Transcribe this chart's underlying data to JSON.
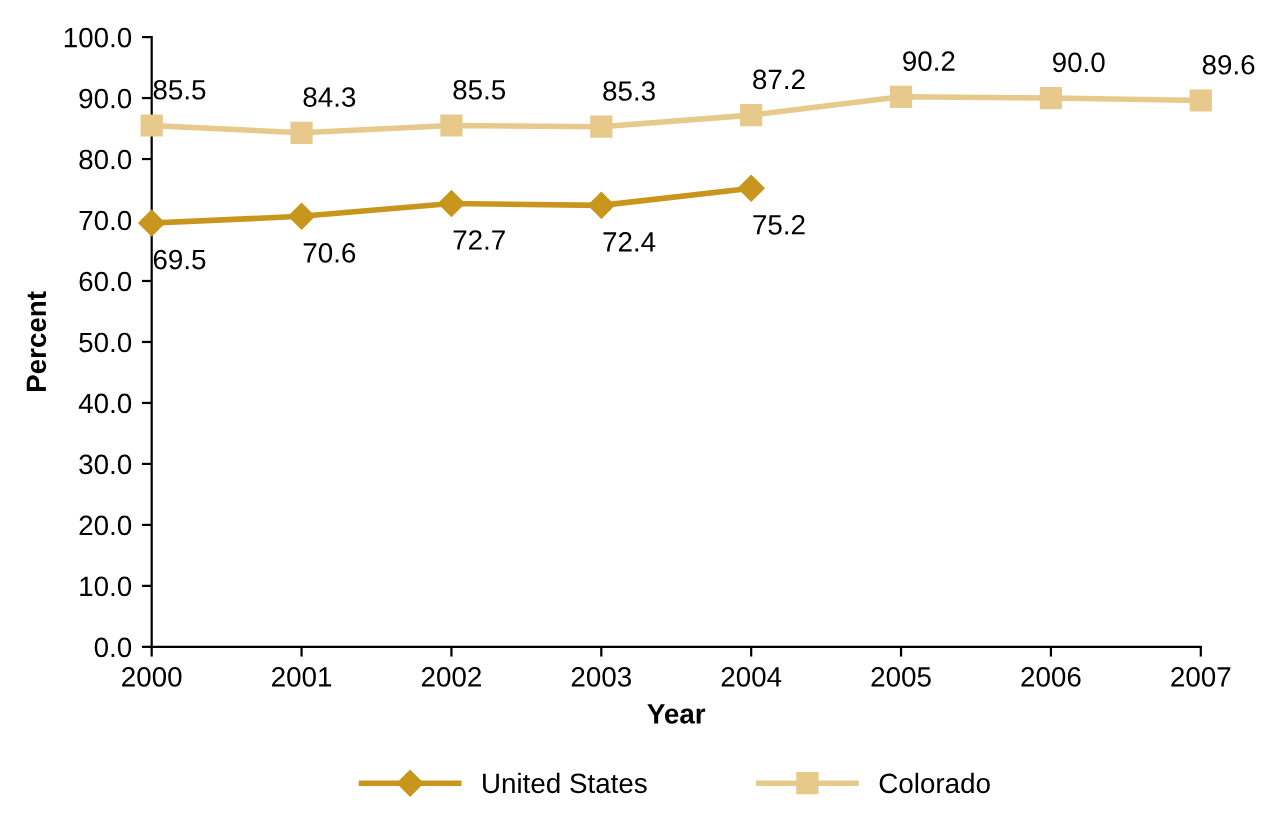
{
  "chart_data": {
    "type": "line",
    "xlabel": "Year",
    "ylabel": "Percent",
    "x": [
      2000,
      2001,
      2002,
      2003,
      2004,
      2005,
      2006,
      2007
    ],
    "series": [
      {
        "name": "United States",
        "color": "#c8961c",
        "marker": "diamond",
        "values": [
          69.5,
          70.6,
          72.7,
          72.4,
          75.2,
          null,
          null,
          null
        ],
        "value_labels": [
          "69.5",
          "70.6",
          "72.7",
          "72.4",
          "75.2",
          null,
          null,
          null
        ]
      },
      {
        "name": "Colorado",
        "color": "#e6c98b",
        "marker": "square",
        "values": [
          85.5,
          84.3,
          85.5,
          85.3,
          87.2,
          90.2,
          90.0,
          89.6
        ],
        "value_labels": [
          "85.5",
          "84.3",
          "85.5",
          "85.3",
          "87.2",
          "90.2",
          "90.0",
          "89.6"
        ]
      }
    ],
    "xlim": [
      2000,
      2007
    ],
    "xticks": [
      2000,
      2001,
      2002,
      2003,
      2004,
      2005,
      2006,
      2007
    ],
    "ylim": [
      0,
      100
    ],
    "yticks": [
      {
        "value": 0,
        "label": "0.0"
      },
      {
        "value": 10,
        "label": "10.0"
      },
      {
        "value": 20,
        "label": "20.0"
      },
      {
        "value": 30,
        "label": "30.0"
      },
      {
        "value": 40,
        "label": "40.0"
      },
      {
        "value": 50,
        "label": "50.0"
      },
      {
        "value": 60,
        "label": "60.0"
      },
      {
        "value": 70,
        "label": "70.0"
      },
      {
        "value": 80,
        "label": "80.0"
      },
      {
        "value": 90,
        "label": "90.0"
      },
      {
        "value": 100,
        "label": "100.0"
      }
    ],
    "grid": false,
    "legend": "bottom",
    "line_style": "solid"
  }
}
